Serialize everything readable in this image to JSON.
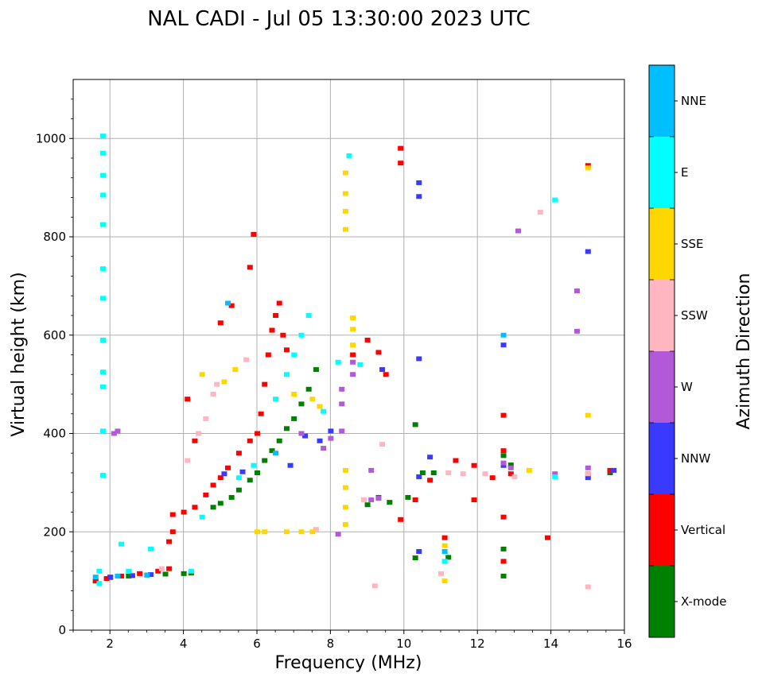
{
  "chart_data": {
    "type": "scatter",
    "title": "NAL CADI - Jul 05 13:30:00 2023 UTC",
    "xlabel": "Frequency (MHz)",
    "ylabel": "Virtual height (km)",
    "xlim": [
      1,
      16
    ],
    "ylim": [
      0,
      1120
    ],
    "xticks": [
      2,
      4,
      6,
      8,
      10,
      12,
      14,
      16
    ],
    "yticks": [
      0,
      200,
      400,
      600,
      800,
      1000
    ],
    "grid": true,
    "colorbar": {
      "label": "Azimuth Direction",
      "placement": "right",
      "categories": [
        {
          "name": "X-mode",
          "color": "#008000"
        },
        {
          "name": "Vertical",
          "color": "#ff0000"
        },
        {
          "name": "NNW",
          "color": "#3a3aff"
        },
        {
          "name": "W",
          "color": "#b259d8"
        },
        {
          "name": "SSW",
          "color": "#ffb6c1"
        },
        {
          "name": "SSE",
          "color": "#ffd700"
        },
        {
          "name": "E",
          "color": "#00ffff"
        },
        {
          "name": "NNE",
          "color": "#00bfff"
        }
      ]
    },
    "series": [
      {
        "name": "X-mode",
        "points": [
          [
            1.6,
            100
          ],
          [
            2.0,
            108
          ],
          [
            2.5,
            110
          ],
          [
            3.0,
            112
          ],
          [
            3.5,
            114
          ],
          [
            4.0,
            115
          ],
          [
            4.2,
            116
          ],
          [
            4.8,
            250
          ],
          [
            5.0,
            258
          ],
          [
            5.3,
            270
          ],
          [
            5.5,
            285
          ],
          [
            5.8,
            305
          ],
          [
            6.0,
            320
          ],
          [
            6.2,
            345
          ],
          [
            6.4,
            365
          ],
          [
            6.6,
            385
          ],
          [
            6.8,
            410
          ],
          [
            7.0,
            430
          ],
          [
            7.2,
            460
          ],
          [
            7.4,
            490
          ],
          [
            7.6,
            530
          ],
          [
            9.0,
            255
          ],
          [
            9.3,
            270
          ],
          [
            9.6,
            260
          ],
          [
            10.1,
            270
          ],
          [
            10.3,
            147
          ],
          [
            10.3,
            418
          ],
          [
            10.5,
            320
          ],
          [
            10.8,
            320
          ],
          [
            11.2,
            148
          ],
          [
            12.7,
            110
          ],
          [
            12.7,
            165
          ],
          [
            12.7,
            355
          ],
          [
            12.9,
            336
          ],
          [
            15.6,
            320
          ]
        ]
      },
      {
        "name": "Vertical",
        "points": [
          [
            1.6,
            100
          ],
          [
            1.9,
            105
          ],
          [
            2.3,
            110
          ],
          [
            2.8,
            115
          ],
          [
            3.3,
            120
          ],
          [
            3.6,
            125
          ],
          [
            3.6,
            180
          ],
          [
            3.7,
            200
          ],
          [
            3.7,
            235
          ],
          [
            4.0,
            240
          ],
          [
            4.3,
            250
          ],
          [
            4.6,
            275
          ],
          [
            4.8,
            295
          ],
          [
            5.0,
            310
          ],
          [
            5.2,
            330
          ],
          [
            5.5,
            360
          ],
          [
            5.8,
            385
          ],
          [
            6.0,
            400
          ],
          [
            6.1,
            440
          ],
          [
            6.2,
            500
          ],
          [
            6.3,
            560
          ],
          [
            6.4,
            610
          ],
          [
            6.5,
            640
          ],
          [
            6.6,
            665
          ],
          [
            6.7,
            600
          ],
          [
            6.8,
            570
          ],
          [
            4.1,
            470
          ],
          [
            4.3,
            385
          ],
          [
            5.0,
            625
          ],
          [
            5.3,
            660
          ],
          [
            5.8,
            738
          ],
          [
            5.9,
            805
          ],
          [
            8.6,
            560
          ],
          [
            9.0,
            590
          ],
          [
            9.3,
            565
          ],
          [
            9.5,
            520
          ],
          [
            9.9,
            225
          ],
          [
            9.9,
            950
          ],
          [
            9.9,
            980
          ],
          [
            10.3,
            265
          ],
          [
            10.7,
            305
          ],
          [
            11.1,
            188
          ],
          [
            11.4,
            345
          ],
          [
            11.9,
            265
          ],
          [
            11.9,
            335
          ],
          [
            12.4,
            310
          ],
          [
            12.7,
            230
          ],
          [
            12.7,
            140
          ],
          [
            12.7,
            437
          ],
          [
            12.7,
            365
          ],
          [
            12.9,
            318
          ],
          [
            13.9,
            188
          ],
          [
            15.0,
            945
          ],
          [
            15.0,
            318
          ],
          [
            15.6,
            325
          ]
        ]
      },
      {
        "name": "NNW",
        "points": [
          [
            2.0,
            107
          ],
          [
            2.6,
            111
          ],
          [
            3.1,
            113
          ],
          [
            5.1,
            318
          ],
          [
            5.6,
            322
          ],
          [
            6.9,
            335
          ],
          [
            7.3,
            395
          ],
          [
            7.7,
            385
          ],
          [
            8.0,
            405
          ],
          [
            9.4,
            530
          ],
          [
            10.4,
            910
          ],
          [
            10.4,
            882
          ],
          [
            10.4,
            552
          ],
          [
            10.4,
            312
          ],
          [
            10.4,
            160
          ],
          [
            10.7,
            352
          ],
          [
            12.7,
            335
          ],
          [
            12.7,
            580
          ],
          [
            15.0,
            770
          ],
          [
            15.0,
            310
          ],
          [
            15.7,
            325
          ]
        ]
      },
      {
        "name": "W",
        "points": [
          [
            2.1,
            400
          ],
          [
            2.2,
            405
          ],
          [
            7.2,
            400
          ],
          [
            7.8,
            370
          ],
          [
            8.0,
            390
          ],
          [
            8.2,
            195
          ],
          [
            8.3,
            405
          ],
          [
            8.3,
            460
          ],
          [
            8.3,
            490
          ],
          [
            8.6,
            520
          ],
          [
            8.6,
            545
          ],
          [
            9.1,
            265
          ],
          [
            9.1,
            325
          ],
          [
            9.3,
            268
          ],
          [
            12.7,
            340
          ],
          [
            12.9,
            330
          ],
          [
            13.1,
            812
          ],
          [
            14.1,
            318
          ],
          [
            14.7,
            690
          ],
          [
            14.7,
            608
          ],
          [
            15.0,
            330
          ]
        ]
      },
      {
        "name": "SSW",
        "points": [
          [
            3.4,
            125
          ],
          [
            4.1,
            345
          ],
          [
            4.4,
            400
          ],
          [
            4.6,
            430
          ],
          [
            4.8,
            480
          ],
          [
            4.9,
            500
          ],
          [
            5.7,
            550
          ],
          [
            7.6,
            205
          ],
          [
            8.9,
            265
          ],
          [
            9.2,
            90
          ],
          [
            9.4,
            378
          ],
          [
            11.0,
            115
          ],
          [
            11.2,
            320
          ],
          [
            11.6,
            318
          ],
          [
            12.2,
            318
          ],
          [
            13.0,
            312
          ],
          [
            13.7,
            850
          ],
          [
            15.0,
            88
          ],
          [
            15.0,
            318
          ]
        ]
      },
      {
        "name": "SSE",
        "points": [
          [
            4.5,
            520
          ],
          [
            5.1,
            505
          ],
          [
            5.4,
            530
          ],
          [
            6.0,
            200
          ],
          [
            6.2,
            200
          ],
          [
            6.8,
            200
          ],
          [
            7.2,
            200
          ],
          [
            7.5,
            200
          ],
          [
            7.0,
            480
          ],
          [
            7.5,
            470
          ],
          [
            7.7,
            455
          ],
          [
            8.4,
            215
          ],
          [
            8.4,
            250
          ],
          [
            8.4,
            290
          ],
          [
            8.4,
            325
          ],
          [
            8.4,
            815
          ],
          [
            8.4,
            852
          ],
          [
            8.4,
            888
          ],
          [
            8.4,
            930
          ],
          [
            8.6,
            580
          ],
          [
            8.6,
            612
          ],
          [
            8.6,
            635
          ],
          [
            11.1,
            100
          ],
          [
            11.1,
            140
          ],
          [
            11.1,
            172
          ],
          [
            13.4,
            325
          ],
          [
            15.0,
            437
          ],
          [
            15.0,
            940
          ]
        ]
      },
      {
        "name": "E",
        "points": [
          [
            1.7,
            95
          ],
          [
            1.7,
            120
          ],
          [
            1.8,
            315
          ],
          [
            1.8,
            405
          ],
          [
            1.8,
            495
          ],
          [
            1.8,
            525
          ],
          [
            1.8,
            590
          ],
          [
            1.8,
            675
          ],
          [
            1.8,
            735
          ],
          [
            1.8,
            825
          ],
          [
            1.8,
            885
          ],
          [
            1.8,
            925
          ],
          [
            1.8,
            970
          ],
          [
            1.8,
            1005
          ],
          [
            2.3,
            175
          ],
          [
            2.5,
            120
          ],
          [
            3.1,
            165
          ],
          [
            4.2,
            120
          ],
          [
            4.5,
            230
          ],
          [
            5.5,
            310
          ],
          [
            5.9,
            335
          ],
          [
            6.5,
            470
          ],
          [
            6.8,
            520
          ],
          [
            7.0,
            560
          ],
          [
            7.2,
            600
          ],
          [
            7.4,
            640
          ],
          [
            7.8,
            445
          ],
          [
            8.2,
            545
          ],
          [
            8.5,
            965
          ],
          [
            8.8,
            540
          ],
          [
            11.1,
            140
          ],
          [
            14.1,
            875
          ],
          [
            14.1,
            312
          ]
        ]
      },
      {
        "name": "NNE",
        "points": [
          [
            1.6,
            108
          ],
          [
            2.2,
            110
          ],
          [
            3.0,
            112
          ],
          [
            5.2,
            665
          ],
          [
            6.5,
            360
          ],
          [
            11.1,
            160
          ],
          [
            12.7,
            600
          ]
        ]
      }
    ]
  }
}
